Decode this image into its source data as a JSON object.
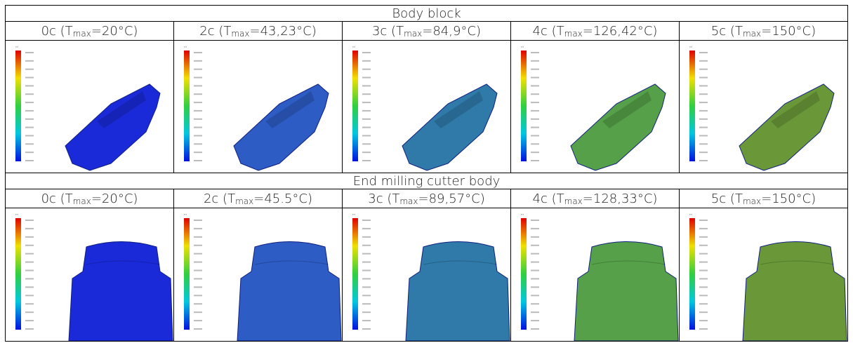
{
  "sections": [
    {
      "title": "Body block",
      "cells": [
        {
          "prefix": "0c (T",
          "sub": "max",
          "suffix": "=20°C)"
        },
        {
          "prefix": "2c (T",
          "sub": "max",
          "suffix": "=43,23°C)"
        },
        {
          "prefix": "3c (T",
          "sub": "max",
          "suffix": "=84,9°C)"
        },
        {
          "prefix": "4c (T",
          "sub": "max",
          "suffix": "=126,42°C)"
        },
        {
          "prefix": "5c (T",
          "sub": "max",
          "suffix": "=150°C)"
        }
      ]
    },
    {
      "title": "End milling cutter body",
      "cells": [
        {
          "prefix": "0c (T",
          "sub": "max",
          "suffix": "=20°C)"
        },
        {
          "prefix": "2c (T",
          "sub": "max",
          "suffix": "=45.5°C)"
        },
        {
          "prefix": "3c (T",
          "sub": "max",
          "suffix": "=89,57°C)"
        },
        {
          "prefix": "4c (T",
          "sub": "max",
          "suffix": "=128,33°C)"
        },
        {
          "prefix": "5c (T",
          "sub": "max",
          "suffix": "=150°C)"
        }
      ]
    }
  ]
}
